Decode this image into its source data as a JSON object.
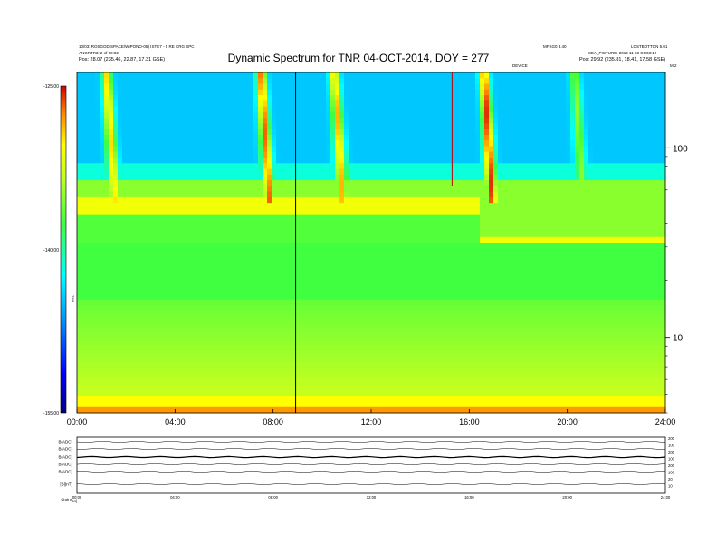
{
  "header": {
    "title": "Dynamic Spectrum for TNR 04-OCT-2014, DOY = 277",
    "left_line1": "10/03: ROSGOD SPACE/WIPONO-05) ISTE7 - 5 RE CRG SPC",
    "left_line2": "ANGRTR3: 2 of 80:02",
    "left_line3": "Pos:    28.07 (235.46, 22.87, 17.31 GSE)",
    "right_line1a": "MFSG0 3.40",
    "right_line1b": "LOSTBOTTON 5.01",
    "right_line2": "SEA_PICTURE: 2014 11 03 CO03:12",
    "right_line3": "Pos:    29.92 (235.81, 18.41, 17.58 GSE)",
    "top_marker_left": "DEVICE",
    "top_marker_right": "MI2"
  },
  "colorbar": {
    "tick_labels": [
      "-125.00",
      "-140.00",
      "-155.00"
    ],
    "label": "TNR",
    "range": [
      -155,
      -125
    ]
  },
  "chart_data": {
    "type": "heatmap",
    "title": "Dynamic Spectrum for TNR 04-OCT-2014, DOY = 277",
    "x_tick_labels": [
      "00:00",
      "04:00",
      "08:00",
      "12:00",
      "16:00",
      "20:00",
      "24:00"
    ],
    "x_range_hours": [
      0,
      24
    ],
    "y_tick_labels": [
      "100",
      "10"
    ],
    "y_scale": "log",
    "y_range": [
      4,
      250
    ],
    "color_scale": "rainbow",
    "vertical_markers_hours": [
      {
        "t": 8.92,
        "color": "#000000"
      },
      {
        "t": 15.3,
        "color": "#c00000"
      }
    ],
    "type_iii_bursts": [
      {
        "t": 1.2,
        "strength": 0.8
      },
      {
        "t": 7.5,
        "strength": 0.95
      },
      {
        "t": 10.5,
        "strength": 0.85
      },
      {
        "t": 16.6,
        "strength": 1.0
      },
      {
        "t": 20.3,
        "strength": 0.5
      }
    ]
  },
  "lower_panel": {
    "row_labels": [
      "B(ADC)",
      "B(ADC)",
      "B(ADC)",
      "B(ADC)",
      "B(ADC)",
      "|B|(nT)",
      "Status"
    ],
    "right_labels": [
      "200",
      "100",
      "200",
      "100",
      "200",
      "100",
      "20",
      "10"
    ],
    "x_tick_labels": [
      "00:00",
      "04:00",
      "08:00",
      "12:00",
      "16:00",
      "20:00",
      "24:00"
    ],
    "status_value": "on|"
  }
}
